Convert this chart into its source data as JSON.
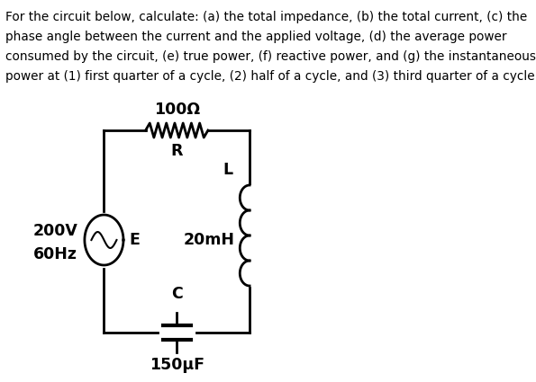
{
  "title_lines": [
    "For the circuit below, calculate: (a) the total impedance, (b) the total current, (c) the",
    "phase angle between the current and the applied voltage, (d) the average power",
    "consumed by the circuit, (e) true power, (f) reactive power, and (g) the instantaneous",
    "power at (1) first quarter of a cycle, (2) half of a cycle, and (3) third quarter of a cycle."
  ],
  "background_color": "#ffffff",
  "resistor_label": "100Ω",
  "resistor_sublabel": "R",
  "inductor_label": "L",
  "inductor_sublabel": "20mH",
  "capacitor_label": "C",
  "capacitor_sublabel": "150μF",
  "source_label1": "200V",
  "source_label2": "60Hz",
  "source_sublabel": "E"
}
